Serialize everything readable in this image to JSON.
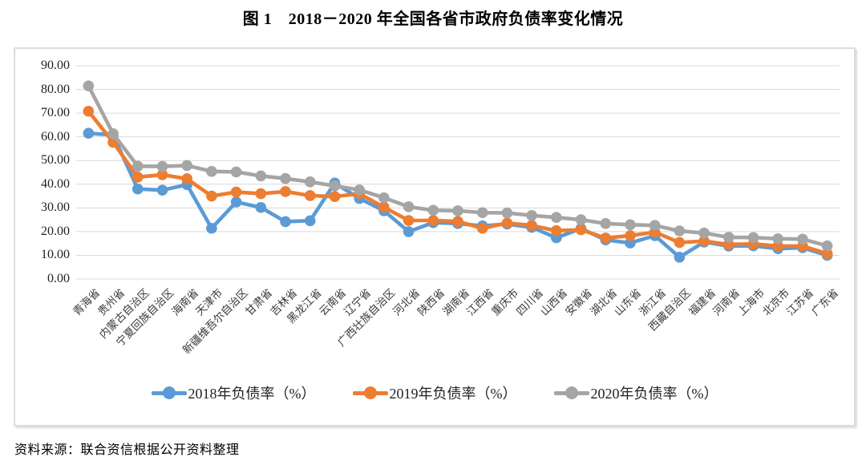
{
  "figure": {
    "title": "图 1　2018－2020 年全国各省市政府负债率变化情况",
    "source_note": "资料来源：联合资信根据公开资料整理"
  },
  "chart_data": {
    "type": "line",
    "title": "图 1　2018－2020 年全国各省市政府负债率变化情况",
    "categories": [
      "青海省",
      "贵州省",
      "内蒙古自治区",
      "宁夏回族自治区",
      "海南省",
      "天津市",
      "新疆维吾尔自治区",
      "甘肃省",
      "吉林省",
      "黑龙江省",
      "云南省",
      "辽宁省",
      "广西壮族自治区",
      "河北省",
      "陕西省",
      "湖南省",
      "江西省",
      "重庆市",
      "四川省",
      "山西省",
      "安徽省",
      "湖北省",
      "山东省",
      "浙江省",
      "西藏自治区",
      "福建省",
      "河南省",
      "上海市",
      "北京市",
      "江苏省",
      "广东省"
    ],
    "series": [
      {
        "name": "2018年负债率（%）",
        "color": "#5B9BD5",
        "values": [
          61.5,
          60.8,
          38.0,
          37.5,
          39.8,
          21.4,
          32.5,
          30.2,
          24.2,
          24.6,
          40.5,
          34.0,
          28.8,
          20.0,
          23.8,
          23.4,
          22.4,
          23.2,
          21.8,
          17.4,
          21.3,
          16.5,
          15.2,
          18.3,
          9.2,
          15.6,
          13.9,
          14.0,
          12.8,
          13.2,
          10.0
        ]
      },
      {
        "name": "2019年负债率（%）",
        "color": "#ED7D31",
        "values": [
          70.8,
          57.7,
          43.0,
          44.0,
          42.3,
          35.0,
          36.7,
          36.0,
          36.9,
          35.2,
          34.8,
          36.0,
          30.3,
          24.7,
          24.7,
          24.3,
          21.4,
          23.6,
          22.6,
          20.4,
          20.8,
          17.3,
          18.3,
          19.8,
          15.4,
          16.0,
          14.6,
          14.8,
          13.9,
          13.9,
          10.7
        ]
      },
      {
        "name": "2020年负债率（%）",
        "color": "#A5A5A5",
        "values": [
          81.5,
          61.3,
          47.6,
          47.5,
          47.9,
          45.4,
          45.2,
          43.5,
          42.4,
          41.0,
          39.3,
          37.6,
          34.3,
          30.5,
          29.0,
          28.8,
          28.0,
          27.9,
          26.8,
          26.0,
          25.0,
          23.4,
          22.9,
          22.6,
          20.3,
          19.4,
          17.6,
          17.5,
          17.0,
          16.8,
          14.0
        ]
      }
    ],
    "ylim": [
      0,
      90
    ],
    "ytick_step": 10,
    "ytick_labels": [
      "90.00",
      "80.00",
      "70.00",
      "60.00",
      "50.00",
      "40.00",
      "30.00",
      "20.00",
      "10.00",
      "0.00"
    ],
    "grid": true,
    "gridline_color": "#d9d9d9",
    "legend_position": "bottom",
    "xlabel": "",
    "ylabel": ""
  }
}
